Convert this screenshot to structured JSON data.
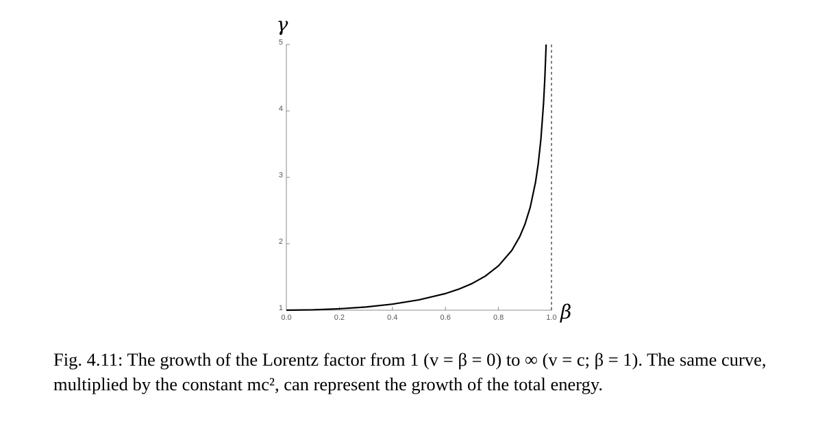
{
  "chart_data": {
    "type": "line",
    "x_label": "β",
    "y_label": "γ",
    "x": [
      0,
      0.1,
      0.2,
      0.3,
      0.4,
      0.5,
      0.6,
      0.65,
      0.7,
      0.75,
      0.8,
      0.85,
      0.88,
      0.9,
      0.92,
      0.94,
      0.95,
      0.96,
      0.97,
      0.975,
      0.9798
    ],
    "series": [
      {
        "color": "#000000",
        "values": [
          1,
          1.005,
          1.021,
          1.048,
          1.091,
          1.155,
          1.25,
          1.316,
          1.4,
          1.512,
          1.667,
          1.898,
          2.105,
          2.294,
          2.552,
          2.931,
          3.203,
          3.571,
          4.113,
          4.5,
          5.0
        ]
      }
    ],
    "asymptote": 1,
    "xlim": [
      0,
      1
    ],
    "ylim": [
      1,
      5
    ],
    "xticks": [
      {
        "value": 0,
        "label": "0.0"
      },
      0.2,
      0.4,
      0.6,
      0.8,
      {
        "value": 1,
        "label": "1.0"
      }
    ],
    "yticks": [
      1,
      2,
      3,
      4,
      5
    ]
  },
  "caption": "Fig. 4.11: The growth of the Lorentz factor from 1 (v = β = 0) to ∞ (v = c; β = 1). The same curve, multiplied by the constant mc², can represent the growth of the total energy."
}
